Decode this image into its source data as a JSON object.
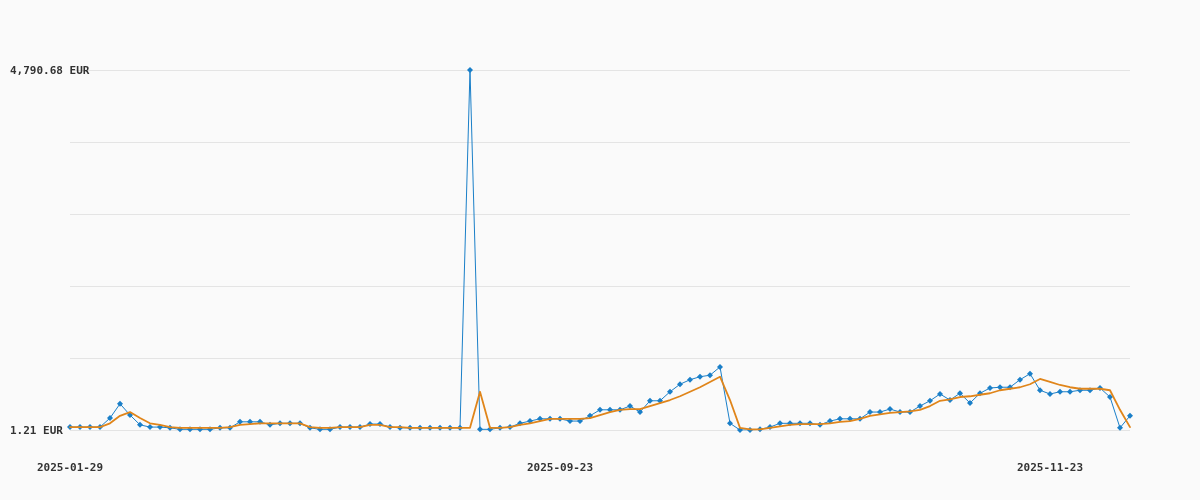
{
  "chart_data": {
    "type": "line",
    "categories": [
      "2025-01-29",
      null,
      null,
      null,
      null,
      null,
      null,
      null,
      null,
      null,
      null,
      null,
      null,
      null,
      null,
      null,
      null,
      null,
      null,
      null,
      null,
      null,
      null,
      null,
      null,
      null,
      null,
      null,
      null,
      null,
      null,
      null,
      null,
      null,
      null,
      null,
      null,
      null,
      null,
      null,
      null,
      null,
      null,
      null,
      null,
      null,
      null,
      null,
      null,
      "2025-09-23",
      null,
      null,
      null,
      null,
      null,
      null,
      null,
      null,
      null,
      null,
      null,
      null,
      null,
      null,
      null,
      null,
      null,
      null,
      null,
      null,
      null,
      null,
      null,
      null,
      null,
      null,
      null,
      null,
      null,
      null,
      null,
      null,
      null,
      null,
      null,
      null,
      null,
      null,
      null,
      null,
      null,
      null,
      null,
      null,
      null,
      null,
      null,
      null,
      "2025-11-23",
      null,
      null,
      null,
      null,
      null,
      null,
      null,
      null
    ],
    "series": [
      {
        "color": "#1a7fc8",
        "marker": "diamond",
        "values": [
          40,
          40,
          40,
          40,
          160,
          350,
          200,
          70,
          40,
          40,
          30,
          10,
          10,
          10,
          10,
          30,
          30,
          110,
          110,
          110,
          70,
          90,
          90,
          90,
          30,
          10,
          10,
          40,
          40,
          40,
          80,
          80,
          40,
          30,
          30,
          30,
          30,
          30,
          30,
          30,
          4790.68,
          10,
          10,
          30,
          40,
          90,
          120,
          150,
          150,
          150,
          120,
          120,
          190,
          270,
          270,
          270,
          320,
          240,
          390,
          390,
          510,
          610,
          670,
          710,
          730,
          840,
          90,
          1.21,
          1.21,
          10,
          40,
          90,
          90,
          90,
          90,
          70,
          120,
          150,
          150,
          150,
          240,
          240,
          280,
          240,
          240,
          320,
          390,
          480,
          400,
          490,
          360,
          490,
          560,
          570,
          570,
          670,
          750,
          530,
          480,
          510,
          510,
          530,
          530,
          560,
          440,
          30,
          190
        ]
      },
      {
        "color": "#e0851a",
        "marker": "none",
        "values": [
          40,
          40,
          40,
          40,
          90,
          190,
          240,
          160,
          90,
          70,
          40,
          30,
          30,
          30,
          30,
          30,
          40,
          70,
          80,
          90,
          90,
          90,
          90,
          90,
          40,
          30,
          30,
          40,
          40,
          40,
          70,
          70,
          40,
          40,
          30,
          30,
          30,
          30,
          30,
          30,
          30,
          510,
          30,
          30,
          40,
          70,
          90,
          120,
          150,
          150,
          150,
          150,
          160,
          200,
          240,
          270,
          280,
          280,
          320,
          360,
          400,
          450,
          510,
          570,
          640,
          710,
          400,
          30,
          10,
          10,
          30,
          50,
          70,
          80,
          80,
          80,
          90,
          110,
          120,
          150,
          190,
          210,
          230,
          240,
          250,
          270,
          320,
          390,
          410,
          440,
          450,
          470,
          490,
          530,
          550,
          570,
          610,
          680,
          640,
          600,
          570,
          550,
          550,
          550,
          530,
          270,
          40
        ]
      }
    ],
    "ylim": [
      1.21,
      4790.68
    ],
    "yticks": [
      {
        "value": 1.21,
        "label": "1.21 EUR"
      },
      {
        "value": 959.1,
        "label": null
      },
      {
        "value": 1917,
        "label": null
      },
      {
        "value": 2874.9,
        "label": null
      },
      {
        "value": 3832.8,
        "label": null
      },
      {
        "value": 4790.68,
        "label": "4,790.68 EUR"
      }
    ],
    "grid": "y",
    "line_style": "solid"
  }
}
